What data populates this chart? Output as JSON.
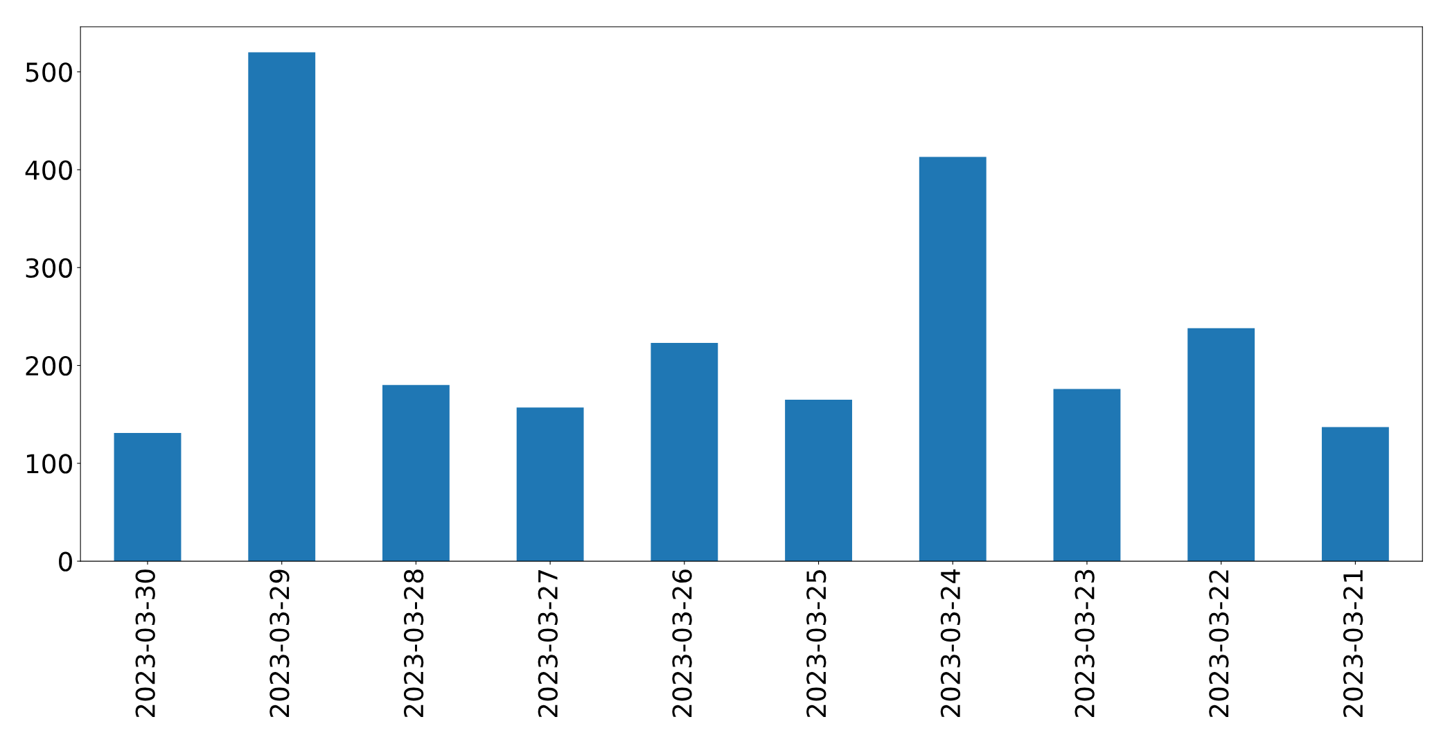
{
  "chart_data": {
    "type": "bar",
    "categories": [
      "2023-03-30",
      "2023-03-29",
      "2023-03-28",
      "2023-03-27",
      "2023-03-26",
      "2023-03-25",
      "2023-03-24",
      "2023-03-23",
      "2023-03-22",
      "2023-03-21"
    ],
    "values": [
      131,
      520,
      180,
      157,
      223,
      165,
      413,
      176,
      238,
      137
    ],
    "color": "#1f77b4",
    "ylim": [
      0,
      546
    ],
    "yticks": [
      0,
      100,
      200,
      300,
      400,
      500
    ],
    "grid": false,
    "legend": false
  }
}
